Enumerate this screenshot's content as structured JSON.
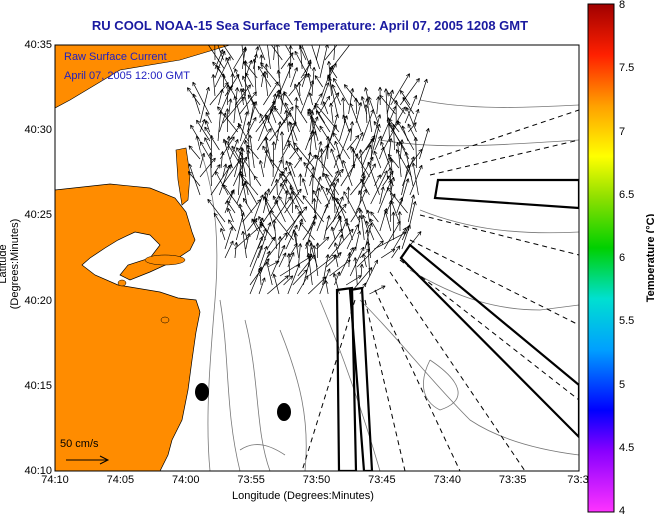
{
  "title": "RU COOL  NOAA-15  Sea Surface Temperature:  April 07, 2005 1208 GMT",
  "overlay": {
    "line1": "Raw Surface Current",
    "line2": "April 07, 2005 12:00 GMT"
  },
  "axes": {
    "xlabel": "Longitude (Degrees:Minutes)",
    "ylabel": "Latitude (Degrees:Minutes)",
    "xticks": [
      "74:10",
      "74:05",
      "74:00",
      "73:55",
      "73:50",
      "73:45",
      "73:40",
      "73:35",
      "73:3"
    ],
    "yticks": [
      "40:35",
      "40:30",
      "40:25",
      "40:20",
      "40:15",
      "40:10"
    ]
  },
  "colorbar": {
    "label": "Temperature (°C)",
    "ticks": [
      "8",
      "7.5",
      "7",
      "6.5",
      "6",
      "5.5",
      "5",
      "4.5",
      "4"
    ],
    "min": 4,
    "max": 8
  },
  "scale": {
    "label": "50 cm/s"
  },
  "colors": {
    "land": "#ff8c00",
    "sea": "#ffffff",
    "title": "#1a1aa0",
    "overlay_text": "#2020c0"
  }
}
